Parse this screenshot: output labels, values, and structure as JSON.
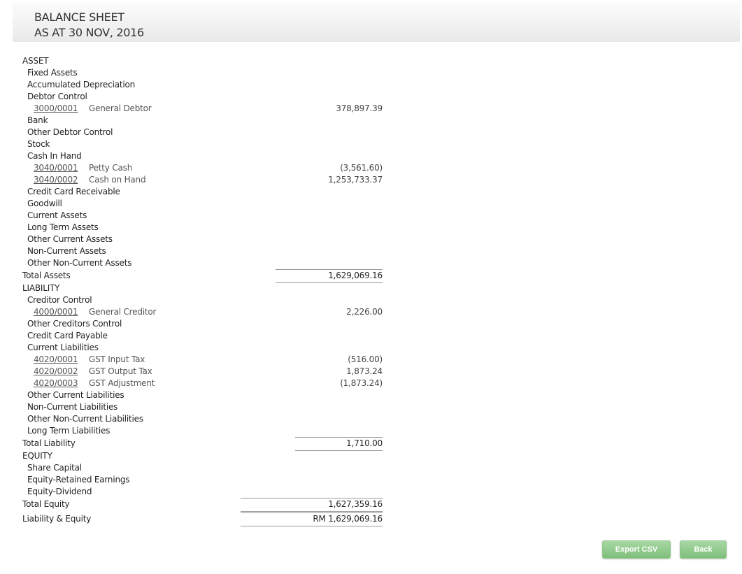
{
  "header": {
    "title": "BALANCE SHEET",
    "subtitle": "AS AT 30 NOV, 2016"
  },
  "rows": [
    {
      "type": "section",
      "label": "ASSET"
    },
    {
      "type": "group",
      "label": "Fixed Assets"
    },
    {
      "type": "group",
      "label": "Accumulated Depreciation"
    },
    {
      "type": "group",
      "label": "Debtor Control"
    },
    {
      "type": "account",
      "code": "3000/0001",
      "name": "General Debtor",
      "value": "378,897.39"
    },
    {
      "type": "group",
      "label": "Bank"
    },
    {
      "type": "group",
      "label": "Other Debtor Control"
    },
    {
      "type": "group",
      "label": "Stock"
    },
    {
      "type": "group",
      "label": "Cash In Hand"
    },
    {
      "type": "account",
      "code": "3040/0001",
      "name": "Petty Cash",
      "value": "(3,561.60)"
    },
    {
      "type": "account",
      "code": "3040/0002",
      "name": "Cash on Hand",
      "value": "1,253,733.37"
    },
    {
      "type": "group",
      "label": "Credit Card Receivable"
    },
    {
      "type": "group",
      "label": "Goodwill"
    },
    {
      "type": "group",
      "label": "Current Assets"
    },
    {
      "type": "group",
      "label": "Long Term Assets"
    },
    {
      "type": "group",
      "label": "Other Current Assets"
    },
    {
      "type": "group",
      "label": "Non-Current Assets"
    },
    {
      "type": "group",
      "label": "Other Non-Current Assets"
    },
    {
      "type": "total",
      "label": "Total Assets",
      "value": "1,629,069.16",
      "line": "short"
    },
    {
      "type": "section",
      "label": "LIABILITY"
    },
    {
      "type": "group",
      "label": "Creditor Control"
    },
    {
      "type": "account",
      "code": "4000/0001",
      "name": "General Creditor",
      "value": "2,226.00"
    },
    {
      "type": "group",
      "label": "Other Creditors Control"
    },
    {
      "type": "group",
      "label": "Credit Card Payable"
    },
    {
      "type": "group",
      "label": "Current Liabilities"
    },
    {
      "type": "account",
      "code": "4020/0001",
      "name": "GST Input Tax",
      "value": "(516.00)"
    },
    {
      "type": "account",
      "code": "4020/0002",
      "name": "GST Output Tax",
      "value": "1,873.24"
    },
    {
      "type": "account",
      "code": "4020/0003",
      "name": "GST Adjustment",
      "value": "(1,873.24)"
    },
    {
      "type": "group",
      "label": "Other Current Liabilities"
    },
    {
      "type": "group",
      "label": "Non-Current Liabilities"
    },
    {
      "type": "group",
      "label": "Other Non-Current Liabilities"
    },
    {
      "type": "group",
      "label": "Long Term Liabilities"
    },
    {
      "type": "total",
      "label": "Total Liability",
      "value": "1,710.00",
      "line": "shorter"
    },
    {
      "type": "section",
      "label": "EQUITY"
    },
    {
      "type": "group",
      "label": "Share Capital"
    },
    {
      "type": "group",
      "label": "Equity-Retained Earnings"
    },
    {
      "type": "group",
      "label": "Equity-Dividend"
    },
    {
      "type": "total",
      "label": "Total Equity",
      "value": "1,627,359.16",
      "line": "long"
    },
    {
      "type": "grand",
      "label": "Liability & Equity",
      "value": "RM 1,629,069.16",
      "line": "long"
    }
  ],
  "buttons": {
    "export": "Export CSV",
    "back": "Back"
  }
}
